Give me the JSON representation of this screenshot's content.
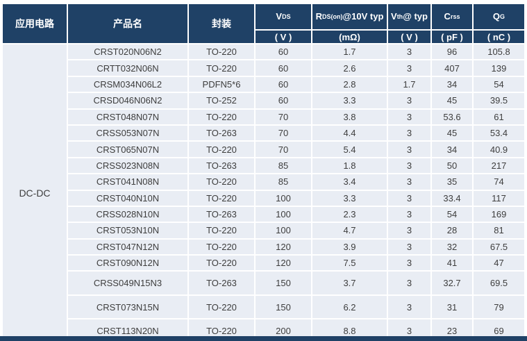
{
  "colors": {
    "header_navy": "#1f4166",
    "cell_background": "#e9edf4",
    "body_text": "#3d3d3d",
    "header_text": "#ffffff",
    "divider": "#ffffff"
  },
  "header": {
    "application_label": "应用电路",
    "product_label": "产品名",
    "package_label": "封装",
    "spec_columns": [
      {
        "base": "V",
        "sup": "DS",
        "rest": "",
        "unit": "( V )"
      },
      {
        "base": "R",
        "sup": "DS(on)",
        "rest": " @10V typ",
        "unit": "(mΩ)"
      },
      {
        "base": "V",
        "sup": "th",
        "rest": "@ typ",
        "unit": "( V )"
      },
      {
        "base": "C",
        "sup": "rss",
        "rest": "",
        "unit": "( pF )"
      },
      {
        "base": "Q",
        "sup": "G",
        "rest": "",
        "unit": "( nC )"
      }
    ]
  },
  "body": {
    "application": "DC-DC",
    "rows": [
      {
        "product": "CRST020N06N2",
        "package": "TO-220",
        "vds": "60",
        "rds_on": "1.7",
        "vth": "3",
        "crss": "96",
        "qg": "105.8"
      },
      {
        "product": "CRTT032N06N",
        "package": "TO-220",
        "vds": "60",
        "rds_on": "2.6",
        "vth": "3",
        "crss": "407",
        "qg": "139"
      },
      {
        "product": "CRSM034N06L2",
        "package": "PDFN5*6",
        "vds": "60",
        "rds_on": "2.8",
        "vth": "1.7",
        "crss": "34",
        "qg": "54"
      },
      {
        "product": "CRSD046N06N2",
        "package": "TO-252",
        "vds": "60",
        "rds_on": "3.3",
        "vth": "3",
        "crss": "45",
        "qg": "39.5"
      },
      {
        "product": "CRST048N07N",
        "package": "TO-220",
        "vds": "70",
        "rds_on": "3.8",
        "vth": "3",
        "crss": "53.6",
        "qg": "61"
      },
      {
        "product": "CRSS053N07N",
        "package": "TO-263",
        "vds": "70",
        "rds_on": "4.4",
        "vth": "3",
        "crss": "45",
        "qg": "53.4"
      },
      {
        "product": "CRST065N07N",
        "package": "TO-220",
        "vds": "70",
        "rds_on": "5.4",
        "vth": "3",
        "crss": "34",
        "qg": "40.9"
      },
      {
        "product": "CRSS023N08N",
        "package": "TO-263",
        "vds": "85",
        "rds_on": "1.8",
        "vth": "3",
        "crss": "50",
        "qg": "217"
      },
      {
        "product": "CRST041N08N",
        "package": "TO-220",
        "vds": "85",
        "rds_on": "3.4",
        "vth": "3",
        "crss": "35",
        "qg": "74"
      },
      {
        "product": "CRST040N10N",
        "package": "TO-220",
        "vds": "100",
        "rds_on": "3.3",
        "vth": "3",
        "crss": "33.4",
        "qg": "117"
      },
      {
        "product": "CRSS028N10N",
        "package": "TO-263",
        "vds": "100",
        "rds_on": "2.3",
        "vth": "3",
        "crss": "54",
        "qg": "169"
      },
      {
        "product": "CRST053N10N",
        "package": "TO-220",
        "vds": "100",
        "rds_on": "4.7",
        "vth": "3",
        "crss": "28",
        "qg": "81"
      },
      {
        "product": "CRST047N12N",
        "package": "TO-220",
        "vds": "120",
        "rds_on": "3.9",
        "vth": "3",
        "crss": "32",
        "qg": "67.5"
      },
      {
        "product": "CRST090N12N",
        "package": "TO-220",
        "vds": "120",
        "rds_on": "7.5",
        "vth": "3",
        "crss": "41",
        "qg": "47"
      },
      {
        "product": "CRSS049N15N3",
        "package": "TO-263",
        "vds": "150",
        "rds_on": "3.7",
        "vth": "3",
        "crss": "32.7",
        "qg": "69.5"
      },
      {
        "product": "CRST073N15N",
        "package": "TO-220",
        "vds": "150",
        "rds_on": "6.2",
        "vth": "3",
        "crss": "31",
        "qg": "79"
      },
      {
        "product": "CRST113N20N",
        "package": "TO-220",
        "vds": "200",
        "rds_on": "8.8",
        "vth": "3",
        "crss": "23",
        "qg": "69"
      }
    ]
  }
}
